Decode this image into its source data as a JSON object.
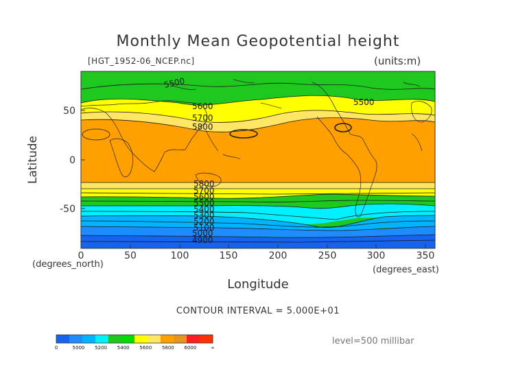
{
  "title": "Monthly Mean Geopotential height",
  "file_label": "[HGT_1952-06_NCEP.nc]",
  "units_label": "(units:m)",
  "y_axis": {
    "label": "Latitude",
    "ticks": [
      "50",
      "0",
      "-50"
    ],
    "unit_label": "(degrees_north)"
  },
  "x_axis": {
    "label": "Longitude",
    "ticks": [
      "0",
      "50",
      "100",
      "150",
      "200",
      "250",
      "300",
      "350"
    ],
    "unit_label": "(degrees_east)"
  },
  "contour_interval": "CONTOUR INTERVAL = 5.000E+01",
  "level_label": "level=500 millibar",
  "contour_labels": [
    "5500",
    "5600",
    "5700",
    "5800",
    "5500",
    "5800",
    "5700",
    "5600",
    "5500",
    "5400",
    "5300",
    "5200",
    "5100",
    "5000",
    "4900"
  ],
  "legend": {
    "labels": [
      "0",
      "5000",
      "5200",
      "5400",
      "5600",
      "5800",
      "6000",
      "∞"
    ],
    "colors": [
      "#1464f0",
      "#1e8cff",
      "#00b4ff",
      "#00f0ff",
      "#1ec81e",
      "#00dc00",
      "#ffff00",
      "#ffe664",
      "#ffa000",
      "#e6961e",
      "#ff1e1e",
      "#ff3200"
    ]
  },
  "band_colors": {
    "under_5000": "#1464f0",
    "5000_5100": "#1e8cff",
    "5200_5300": "#00b4ff",
    "5300_5400": "#00f0ff",
    "5400_5600": "#1ec81e",
    "5600_5700": "#ffff00",
    "5700_5800": "#ffe664",
    "5800_6000": "#ffa000"
  }
}
